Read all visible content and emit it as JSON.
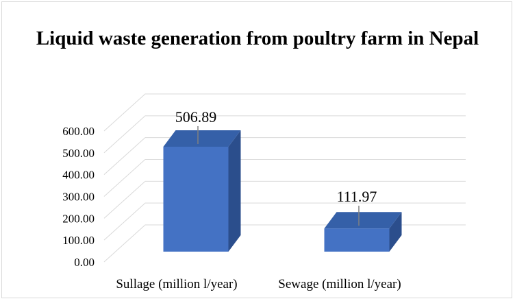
{
  "chart_data": {
    "type": "bar",
    "style": "3d-column",
    "title": "Liquid waste generation from poultry farm in Nepal",
    "categories": [
      "Sullage (million l/year)",
      "Sewage (million l/year)"
    ],
    "values": [
      506.89,
      111.97
    ],
    "data_labels": [
      "506.89",
      "111.97"
    ],
    "y_ticks": [
      "0.00",
      "100.00",
      "200.00",
      "300.00",
      "400.00",
      "500.00",
      "600.00"
    ],
    "ylim": [
      0,
      600
    ],
    "grid": true,
    "legend": "none",
    "bar_color": "#4472c4",
    "bar_side_color": "#2b4e8c",
    "bar_top_color": "#3560a8",
    "grid_color": "#d9d9d9"
  }
}
